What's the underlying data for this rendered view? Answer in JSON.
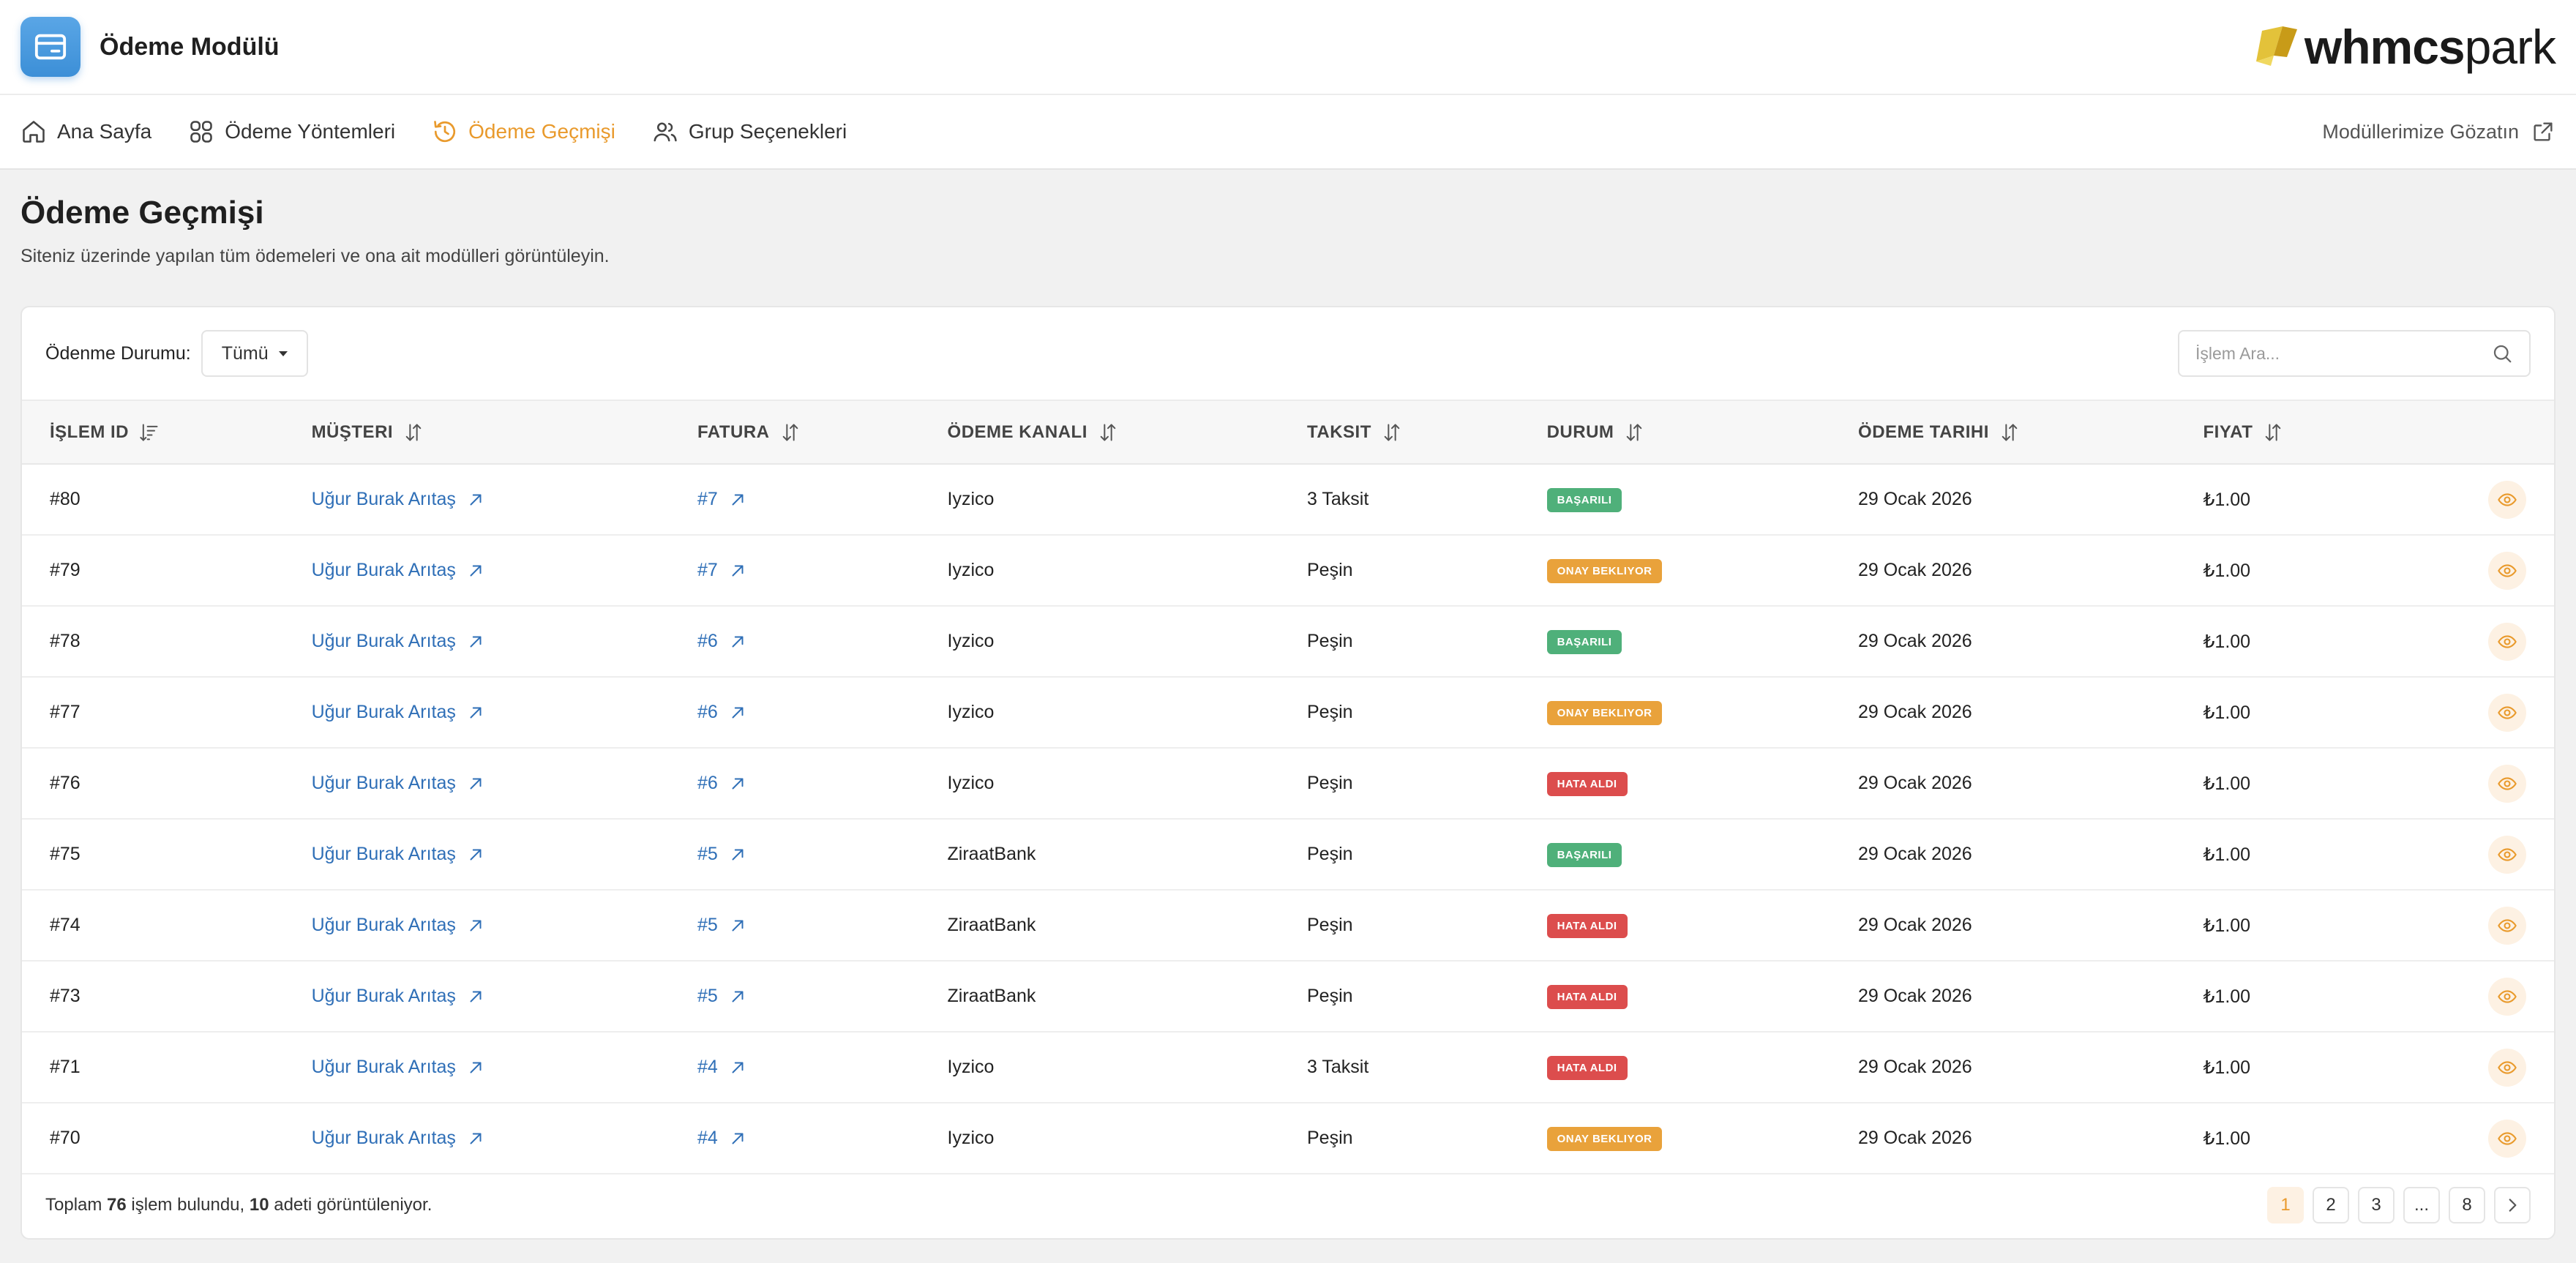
{
  "app": {
    "title": "Ödeme Modülü",
    "logo_bold": "whmcs",
    "logo_light": "park"
  },
  "nav": {
    "items": [
      {
        "label": "Ana Sayfa",
        "icon": "home-icon"
      },
      {
        "label": "Ödeme Yöntemleri",
        "icon": "grid-icon"
      },
      {
        "label": "Ödeme Geçmişi",
        "icon": "history-icon",
        "active": true
      },
      {
        "label": "Grup Seçenekleri",
        "icon": "users-icon"
      }
    ],
    "external_label": "Modüllerimize Gözatın"
  },
  "page": {
    "title": "Ödeme Geçmişi",
    "subtitle": "Siteniz üzerinde yapılan tüm ödemeleri ve ona ait modülleri görüntüleyin."
  },
  "filter": {
    "label": "Ödenme Durumu:",
    "selected": "Tümü"
  },
  "search": {
    "placeholder": "İşlem Ara..."
  },
  "table": {
    "columns": [
      "İŞLEM ID",
      "MÜŞTERI",
      "FATURA",
      "ÖDEME KANALI",
      "TAKSIT",
      "DURUM",
      "ÖDEME TARIHI",
      "FIYAT"
    ],
    "rows": [
      {
        "id": "#80",
        "customer": "Uğur Burak Arıtaş",
        "invoice": "#7",
        "channel": "Iyzico",
        "installment": "3 Taksit",
        "status": "BAŞARILI",
        "status_type": "success",
        "date": "29 Ocak 2026",
        "price": "₺1.00"
      },
      {
        "id": "#79",
        "customer": "Uğur Burak Arıtaş",
        "invoice": "#7",
        "channel": "Iyzico",
        "installment": "Peşin",
        "status": "ONAY BEKLIYOR",
        "status_type": "pending",
        "date": "29 Ocak 2026",
        "price": "₺1.00"
      },
      {
        "id": "#78",
        "customer": "Uğur Burak Arıtaş",
        "invoice": "#6",
        "channel": "Iyzico",
        "installment": "Peşin",
        "status": "BAŞARILI",
        "status_type": "success",
        "date": "29 Ocak 2026",
        "price": "₺1.00"
      },
      {
        "id": "#77",
        "customer": "Uğur Burak Arıtaş",
        "invoice": "#6",
        "channel": "Iyzico",
        "installment": "Peşin",
        "status": "ONAY BEKLIYOR",
        "status_type": "pending",
        "date": "29 Ocak 2026",
        "price": "₺1.00"
      },
      {
        "id": "#76",
        "customer": "Uğur Burak Arıtaş",
        "invoice": "#6",
        "channel": "Iyzico",
        "installment": "Peşin",
        "status": "HATA ALDI",
        "status_type": "error",
        "date": "29 Ocak 2026",
        "price": "₺1.00"
      },
      {
        "id": "#75",
        "customer": "Uğur Burak Arıtaş",
        "invoice": "#5",
        "channel": "ZiraatBank",
        "installment": "Peşin",
        "status": "BAŞARILI",
        "status_type": "success",
        "date": "29 Ocak 2026",
        "price": "₺1.00"
      },
      {
        "id": "#74",
        "customer": "Uğur Burak Arıtaş",
        "invoice": "#5",
        "channel": "ZiraatBank",
        "installment": "Peşin",
        "status": "HATA ALDI",
        "status_type": "error",
        "date": "29 Ocak 2026",
        "price": "₺1.00"
      },
      {
        "id": "#73",
        "customer": "Uğur Burak Arıtaş",
        "invoice": "#5",
        "channel": "ZiraatBank",
        "installment": "Peşin",
        "status": "HATA ALDI",
        "status_type": "error",
        "date": "29 Ocak 2026",
        "price": "₺1.00"
      },
      {
        "id": "#71",
        "customer": "Uğur Burak Arıtaş",
        "invoice": "#4",
        "channel": "Iyzico",
        "installment": "3 Taksit",
        "status": "HATA ALDI",
        "status_type": "error",
        "date": "29 Ocak 2026",
        "price": "₺1.00"
      },
      {
        "id": "#70",
        "customer": "Uğur Burak Arıtaş",
        "invoice": "#4",
        "channel": "Iyzico",
        "installment": "Peşin",
        "status": "ONAY BEKLIYOR",
        "status_type": "pending",
        "date": "29 Ocak 2026",
        "price": "₺1.00"
      }
    ]
  },
  "footer": {
    "prefix": "Toplam ",
    "total": "76",
    "middle": " işlem bulundu, ",
    "shown": "10",
    "suffix": " adeti görüntüleniyor."
  },
  "pagination": {
    "pages": [
      "1",
      "2",
      "3",
      "...",
      "8"
    ],
    "active": "1"
  },
  "colors": {
    "accent": "#e99a2c",
    "link": "#2f6fb7",
    "success": "#4fb07a",
    "pending": "#e9a23b",
    "error": "#dc4d4d"
  }
}
